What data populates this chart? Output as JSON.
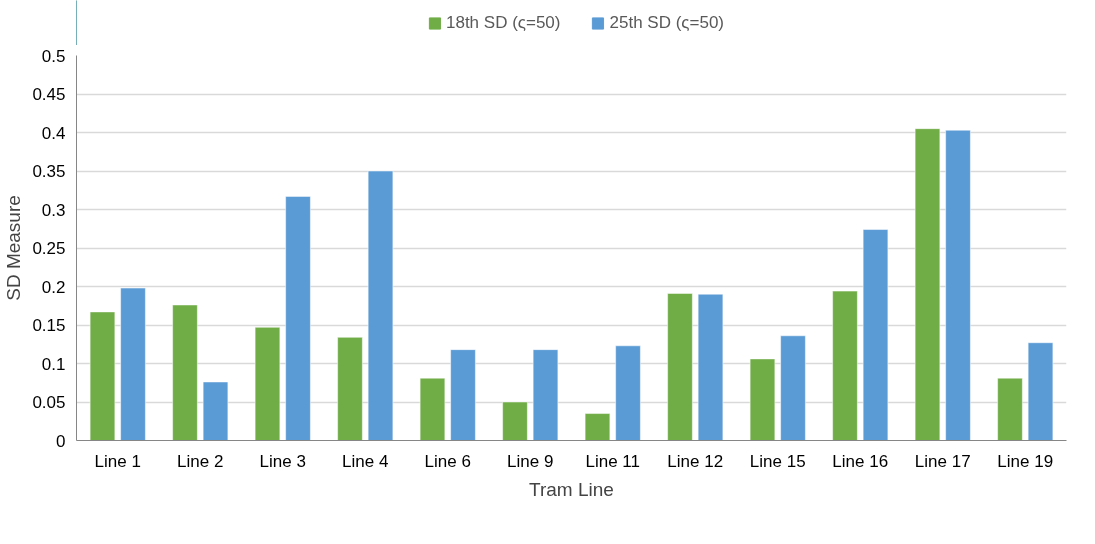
{
  "chart_data": {
    "type": "bar",
    "xlabel": "Tram Line",
    "ylabel": "SD Measure",
    "categories": [
      "Line 1",
      "Line 2",
      "Line 3",
      "Line 4",
      "Line 6",
      "Line 9",
      "Line 11",
      "Line 12",
      "Line 15",
      "Line 16",
      "Line 17",
      "Line 19"
    ],
    "series": [
      {
        "name": "18th SD (ς=50)",
        "color": "#70ad47",
        "values": [
          0.167,
          0.176,
          0.147,
          0.134,
          0.081,
          0.05,
          0.035,
          0.191,
          0.106,
          0.194,
          0.405,
          0.081
        ]
      },
      {
        "name": "25th SD (ς=50)",
        "color": "#5b9bd5",
        "values": [
          0.198,
          0.076,
          0.317,
          0.35,
          0.118,
          0.118,
          0.123,
          0.19,
          0.136,
          0.274,
          0.403,
          0.127
        ]
      }
    ],
    "ylim": [
      0,
      0.5
    ],
    "yticks": [
      0,
      0.05,
      0.1,
      0.15,
      0.2,
      0.25,
      0.3,
      0.35,
      0.4,
      0.45,
      0.5
    ],
    "grid": "y",
    "legend": "top"
  }
}
